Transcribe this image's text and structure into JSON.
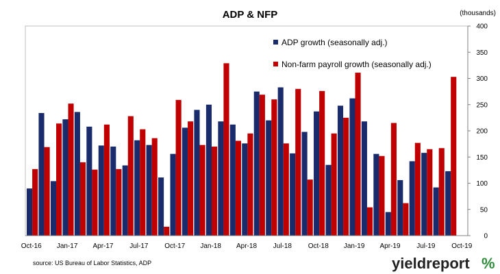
{
  "chart_data": {
    "type": "bar",
    "title": "ADP & NFP",
    "ylabel": "(thousands)",
    "ylim": [
      0,
      400
    ],
    "yticks": [
      0,
      50,
      100,
      150,
      200,
      250,
      300,
      350,
      400
    ],
    "xtick_labels": [
      "Oct-16",
      "Jan-17",
      "Apr-17",
      "Jul-17",
      "Oct-17",
      "Jan-18",
      "Apr-18",
      "Jul-18",
      "Oct-18",
      "Jan-19",
      "Apr-19",
      "Jul-19",
      "Oct-19"
    ],
    "legend_position": "top-right",
    "grid": false,
    "categories": [
      "Oct-16",
      "Nov-16",
      "Dec-16",
      "Jan-17",
      "Feb-17",
      "Mar-17",
      "Apr-17",
      "May-17",
      "Jun-17",
      "Jul-17",
      "Aug-17",
      "Sep-17",
      "Oct-17",
      "Nov-17",
      "Dec-17",
      "Jan-18",
      "Feb-18",
      "Mar-18",
      "Apr-18",
      "May-18",
      "Jun-18",
      "Jul-18",
      "Aug-18",
      "Sep-18",
      "Oct-18",
      "Nov-18",
      "Dec-18",
      "Jan-19",
      "Feb-19",
      "Mar-19",
      "Apr-19",
      "May-19",
      "Jun-19",
      "Jul-19",
      "Aug-19",
      "Sep-19",
      "Oct-19"
    ],
    "series": [
      {
        "name": "ADP growth (seasonally adj.)",
        "color": "#1a2b6b",
        "values": [
          90,
          234,
          104,
          222,
          236,
          208,
          172,
          170,
          134,
          182,
          173,
          111,
          156,
          206,
          240,
          250,
          218,
          212,
          176,
          275,
          220,
          283,
          157,
          198,
          237,
          135,
          248,
          262,
          218,
          156,
          45,
          106,
          142,
          158,
          92,
          123,
          null
        ]
      },
      {
        "name": "Non-farm payroll growth (seasonally adj.)",
        "color": "#c00000",
        "values": [
          127,
          169,
          214,
          252,
          140,
          126,
          212,
          127,
          228,
          203,
          186,
          17,
          259,
          218,
          173,
          170,
          329,
          181,
          195,
          269,
          260,
          176,
          280,
          107,
          276,
          195,
          225,
          311,
          54,
          152,
          215,
          62,
          177,
          165,
          167,
          303,
          null
        ]
      }
    ]
  },
  "source": "source: US Bureau of Labor Statistics, ADP",
  "logo": {
    "word": "yieldreport",
    "symbol": "%"
  }
}
